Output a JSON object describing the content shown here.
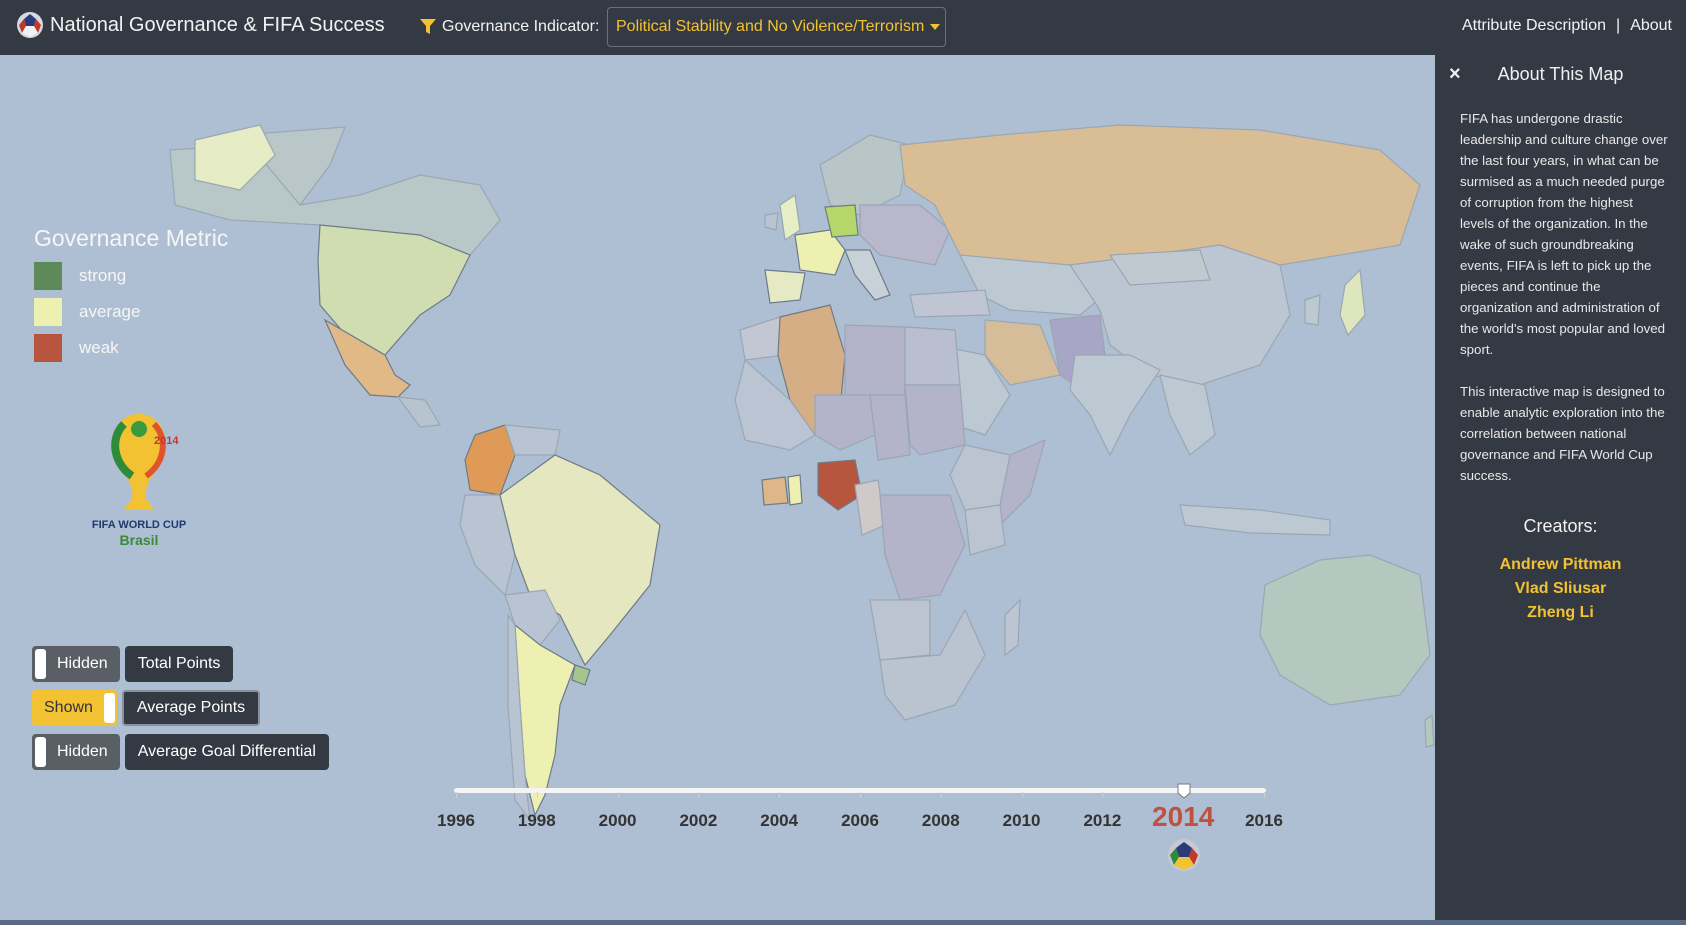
{
  "navbar": {
    "title": "National Governance & FIFA Success",
    "indicator_label": "Governance Indicator:",
    "indicator_value": "Political Stability and No Violence/Terrorism",
    "links": {
      "attribute": "Attribute Description",
      "separator": "|",
      "about": "About"
    }
  },
  "legend": {
    "title": "Governance Metric",
    "items": [
      {
        "label": "strong",
        "color": "#5e8a5a"
      },
      {
        "label": "average",
        "color": "#eef0b2"
      },
      {
        "label": "weak",
        "color": "#b7553e"
      }
    ]
  },
  "logo": {
    "line1": "FIFA WORLD CUP",
    "line2": "Brasil",
    "year": "2014"
  },
  "toggles": [
    {
      "state": "Hidden",
      "metric": "Total Points"
    },
    {
      "state": "Shown",
      "metric": "Average Points"
    },
    {
      "state": "Hidden",
      "metric": "Average Goal Differential"
    }
  ],
  "timeline": {
    "years": [
      "1996",
      "1998",
      "2000",
      "2002",
      "2004",
      "2006",
      "2008",
      "2010",
      "2012",
      "2014",
      "2016"
    ],
    "selected": "2014"
  },
  "panel": {
    "close": "×",
    "title": "About This Map",
    "paragraph1": "FIFA has undergone drastic leadership and culture change over the last four years, in what can be surmised as a much needed purge of corruption from the highest levels of the organization. In the wake of such groundbreaking events, FIFA is left to pick up the pieces and continue the organization and administration of the world's most popular and loved sport.",
    "paragraph2": "This interactive map is designed to enable analytic exploration into the correlation between national governance and FIFA World Cup success.",
    "creators_title": "Creators:",
    "creators": [
      "Andrew Pittman",
      "Vlad Sliusar",
      "Zheng Li"
    ]
  },
  "colors": {
    "navbar": "#343a44",
    "accent": "#f2c232",
    "ocean": "#aebfd3",
    "selected_year": "#c0513f"
  }
}
